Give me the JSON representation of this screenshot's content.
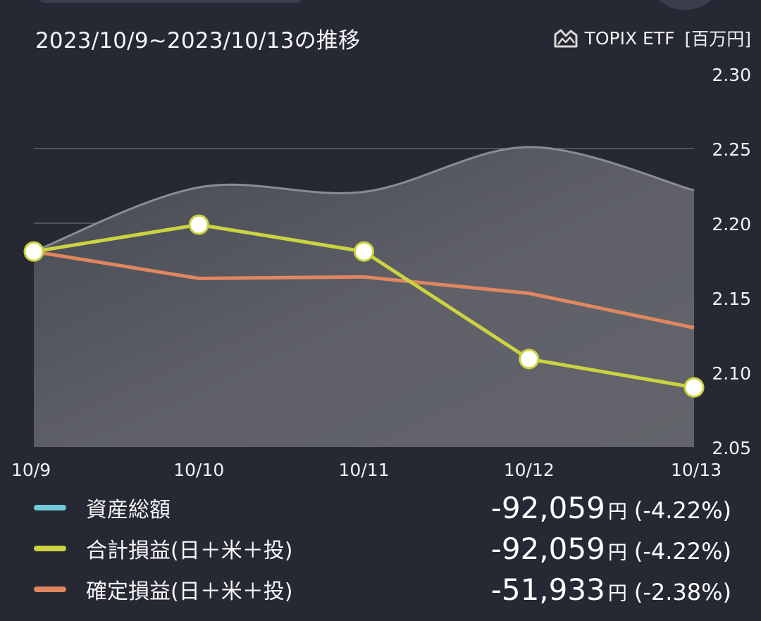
{
  "header": {
    "period": "2023/10/9~2023/10/13の推移",
    "benchmark_label": "TOPIX ETF",
    "unit": "[百万円]"
  },
  "chart_data": {
    "type": "line",
    "categories": [
      "10/9",
      "10/10",
      "10/11",
      "10/12",
      "10/13"
    ],
    "y_ticks": [
      "2.30",
      "2.25",
      "2.20",
      "2.15",
      "2.10",
      "2.05"
    ],
    "ylim": [
      2.05,
      2.3
    ],
    "y_axis_position": "right",
    "grid": true,
    "series": [
      {
        "name": "TOPIX ETF",
        "values": [
          2.181,
          2.224,
          2.221,
          2.251,
          2.222
        ],
        "color": "#8b8c92",
        "style": "area"
      },
      {
        "name": "確定損益(日＋米＋投)",
        "values": [
          2.181,
          2.163,
          2.164,
          2.153,
          2.13
        ],
        "color": "#e0875f"
      },
      {
        "name": "合計損益(日＋米＋投)",
        "values": [
          2.181,
          2.199,
          2.181,
          2.109,
          2.09
        ],
        "color": "#ccd341",
        "markers": true
      }
    ]
  },
  "legend": [
    {
      "label": "資産総額",
      "amount": "-92,059",
      "yen": "円",
      "pct": "(-4.22%)",
      "color": "#6fcad8"
    },
    {
      "label": "合計損益(日＋米＋投)",
      "amount": "-92,059",
      "yen": "円",
      "pct": "(-4.22%)",
      "color": "#ccd341"
    },
    {
      "label": "確定損益(日＋米＋投)",
      "amount": "-51,933",
      "yen": "円",
      "pct": "(-2.38%)",
      "color": "#e0875f"
    }
  ]
}
